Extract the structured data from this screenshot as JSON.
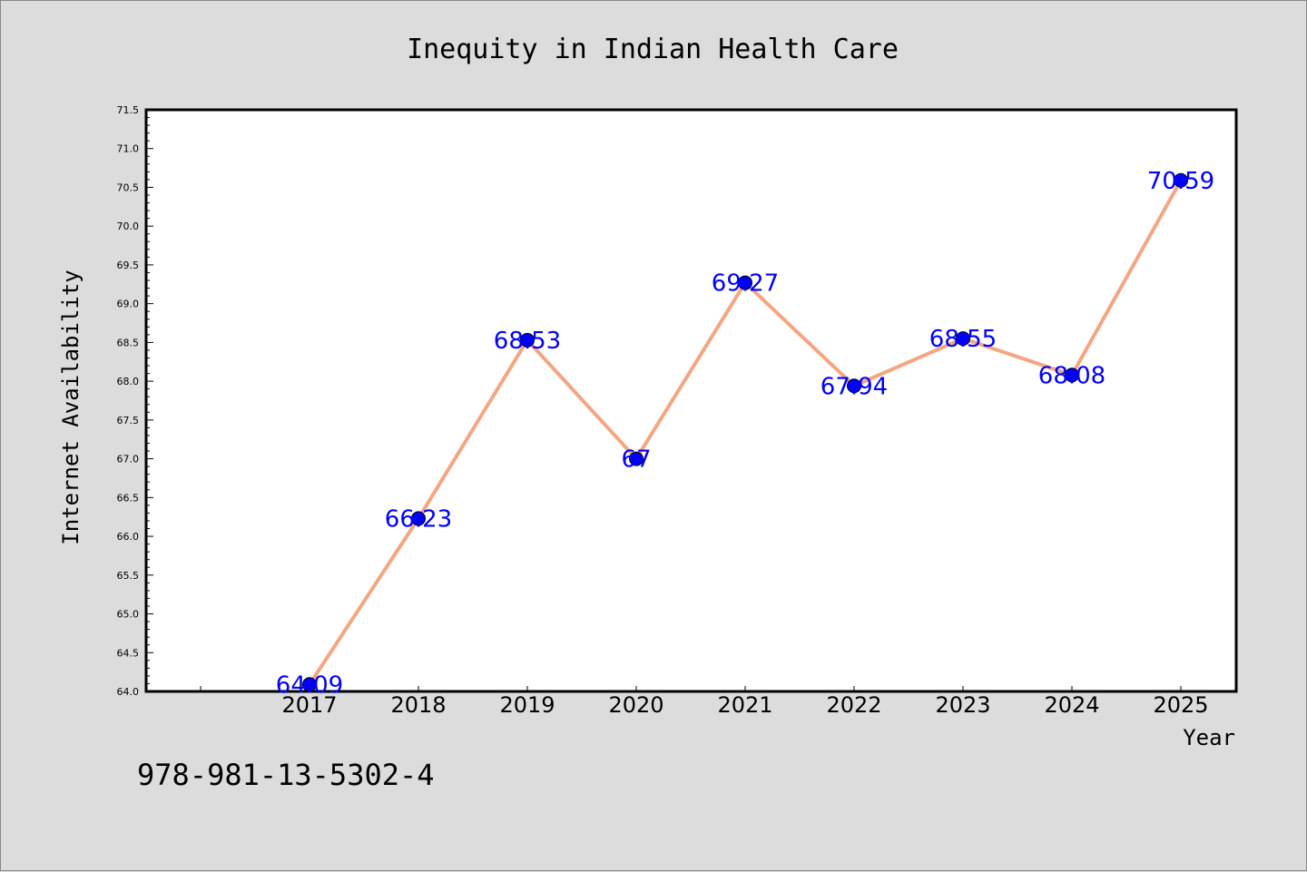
{
  "chart_data": {
    "type": "line",
    "title": "Inequity in Indian Health Care",
    "xlabel": "Year",
    "ylabel": "Internet Availability",
    "x": [
      "2017",
      "2018",
      "2019",
      "2020",
      "2021",
      "2022",
      "2023",
      "2024",
      "2025"
    ],
    "values": [
      64.09,
      66.23,
      68.53,
      67,
      69.27,
      67.94,
      68.55,
      68.08,
      70.59
    ],
    "data_labels": [
      "64.09",
      "66.23",
      "68.53",
      "67",
      "69.27",
      "67.94",
      "68.55",
      "68.08",
      "70.59"
    ],
    "ylim": [
      64.0,
      71.5
    ],
    "yticks": [
      "64.0",
      "64.5",
      "65.0",
      "65.5",
      "66.0",
      "66.5",
      "67.0",
      "67.5",
      "68.0",
      "68.5",
      "69.0",
      "69.5",
      "70.0",
      "70.5",
      "71.0",
      "71.5"
    ],
    "grid": false,
    "line_color": "#f4a582",
    "marker_color": "#0000ff",
    "label_color": "#0000ff",
    "background_color": "#dcdcdc",
    "plot_background_color": "#ffffff"
  },
  "footer": {
    "isbn": "978-981-13-5302-4"
  }
}
